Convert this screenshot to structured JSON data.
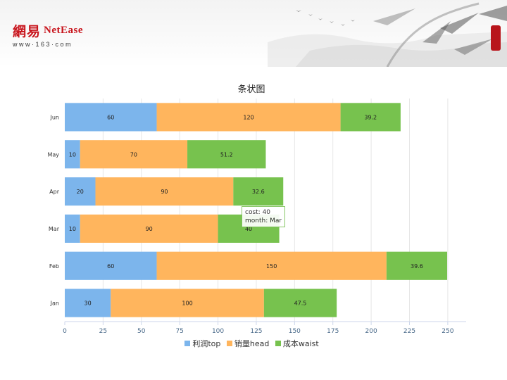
{
  "header": {
    "logo_cn": "網易",
    "logo_en": "NetEase",
    "logo_url": "www·163·com"
  },
  "colors": {
    "profit": "#7cb5ec",
    "sales": "#ffb55d",
    "waist": "#77c24e",
    "axis_text": "#4a6a8a",
    "grid": "#e6e6e6"
  },
  "tooltip": {
    "line1": "cost: 40",
    "line2": "month: Mar"
  },
  "chart_data": {
    "type": "bar",
    "orientation": "horizontal",
    "stacked": true,
    "title": "条状图",
    "categories": [
      "Jan",
      "Feb",
      "Mar",
      "Apr",
      "May",
      "Jun"
    ],
    "series": [
      {
        "name": "利润top",
        "color": "#7cb5ec",
        "values": [
          30,
          60,
          10,
          20,
          10,
          60
        ]
      },
      {
        "name": "销量head",
        "color": "#ffb55d",
        "values": [
          100,
          150,
          90,
          90,
          70,
          120
        ]
      },
      {
        "name": "成本waist",
        "color": "#77c24e",
        "values": [
          47.5,
          39.6,
          40,
          32.6,
          51.2,
          39.2
        ]
      }
    ],
    "x_ticks": [
      0,
      25,
      50,
      75,
      100,
      125,
      150,
      175,
      200,
      225,
      250
    ],
    "xlim": [
      0,
      262
    ],
    "grid": true,
    "legend_position": "bottom"
  }
}
